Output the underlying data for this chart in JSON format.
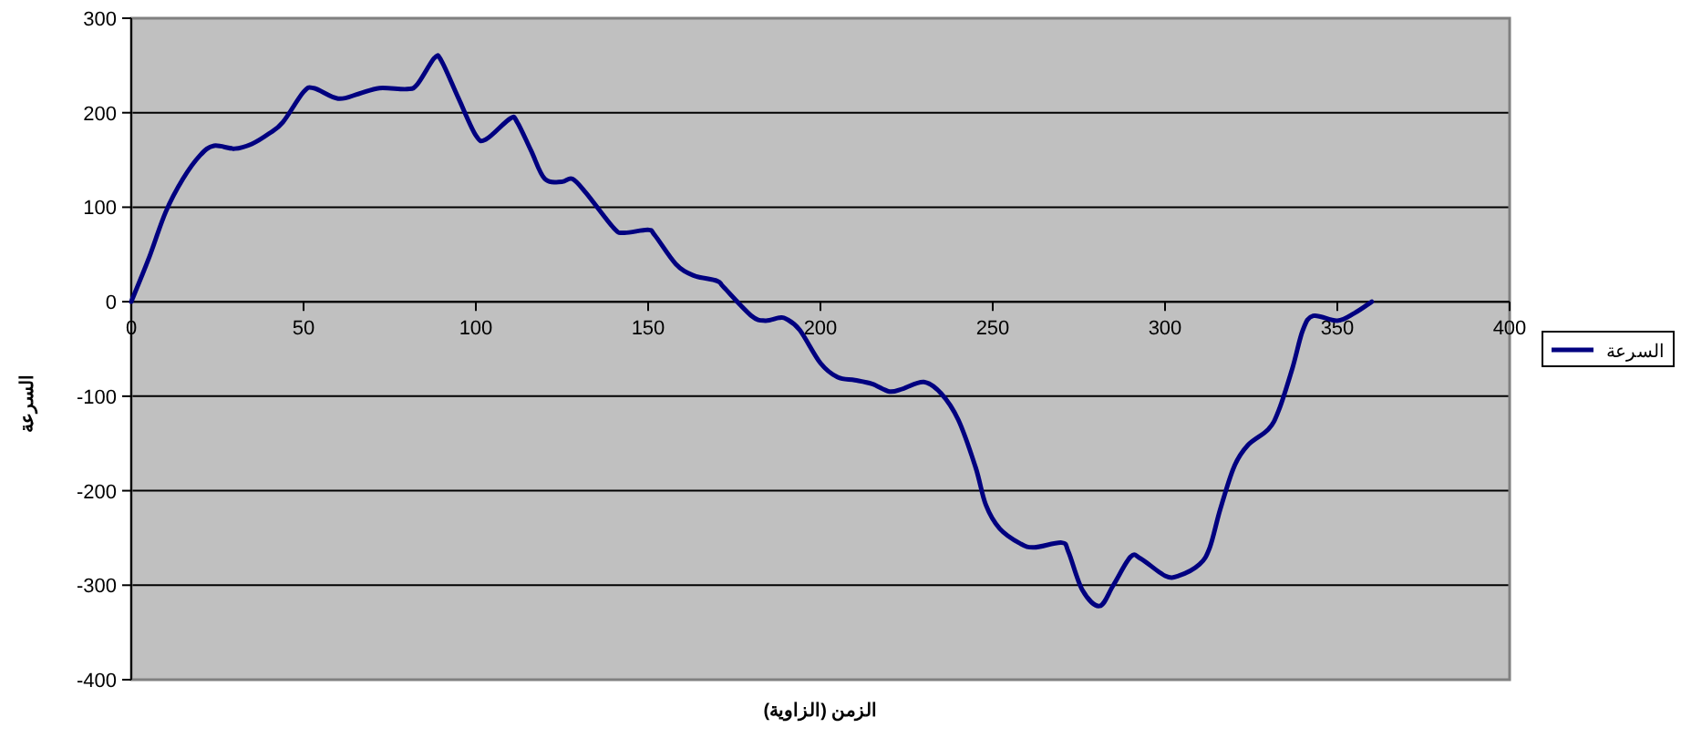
{
  "chart_data": {
    "type": "line",
    "xlabel": "الزمن (الزاوية)",
    "ylabel": "السرعة",
    "xlim": [
      0,
      400
    ],
    "ylim": [
      -400,
      300
    ],
    "xticks": [
      0,
      50,
      100,
      150,
      200,
      250,
      300,
      350,
      400
    ],
    "yticks": [
      -400,
      -300,
      -200,
      -100,
      0,
      100,
      200,
      300
    ],
    "grid": "y",
    "legend": "right",
    "marker": "none",
    "line_style": "solid",
    "series": [
      {
        "name": "السرعة",
        "color": "#000080",
        "x": [
          0,
          5,
          10,
          15,
          20,
          24,
          30,
          35,
          40,
          44,
          50,
          53,
          60,
          66,
          72,
          80,
          83,
          88,
          90,
          95,
          100,
          103,
          110,
          112,
          116,
          120,
          125,
          128,
          132,
          140,
          143,
          150,
          152,
          158,
          163,
          170,
          172,
          180,
          184,
          188,
          190,
          194,
          200,
          205,
          210,
          215,
          220,
          224,
          230,
          235,
          240,
          245,
          248,
          252,
          258,
          262,
          270,
          272,
          276,
          281,
          285,
          290,
          293,
          300,
          304,
          310,
          313,
          316,
          320,
          324,
          330,
          333,
          337,
          340,
          343,
          350,
          355,
          360
        ],
        "values": [
          0,
          45,
          95,
          130,
          155,
          165,
          162,
          167,
          178,
          190,
          222,
          226,
          215,
          220,
          226,
          225,
          230,
          258,
          255,
          215,
          176,
          172,
          194,
          190,
          160,
          130,
          127,
          130,
          115,
          78,
          73,
          76,
          70,
          40,
          28,
          22,
          15,
          -15,
          -20,
          -17,
          -18,
          -30,
          -65,
          -80,
          -83,
          -87,
          -95,
          -92,
          -85,
          -97,
          -125,
          -175,
          -215,
          -240,
          -256,
          -260,
          -255,
          -265,
          -305,
          -322,
          -300,
          -270,
          -272,
          -290,
          -290,
          -278,
          -260,
          -220,
          -175,
          -152,
          -135,
          -115,
          -70,
          -30,
          -15,
          -20,
          -12,
          0
        ]
      }
    ]
  }
}
